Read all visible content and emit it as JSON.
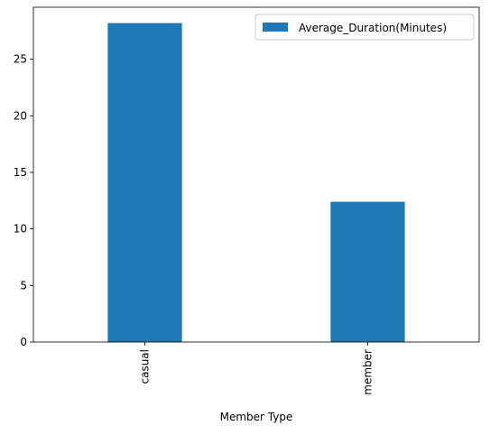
{
  "chart_data": {
    "type": "bar",
    "categories": [
      "casual",
      "member"
    ],
    "series": [
      {
        "name": "Average_Duration(Minutes)",
        "values": [
          28.2,
          12.4
        ]
      }
    ],
    "xlabel": "Member Type",
    "ylabel": "",
    "ylim": [
      0,
      29.6
    ],
    "yticks": [
      0,
      5,
      10,
      15,
      20,
      25
    ],
    "grid": false,
    "legend_position": "top-right",
    "bar_color": "#1f77b4",
    "x_tick_rotation": "vertical"
  }
}
